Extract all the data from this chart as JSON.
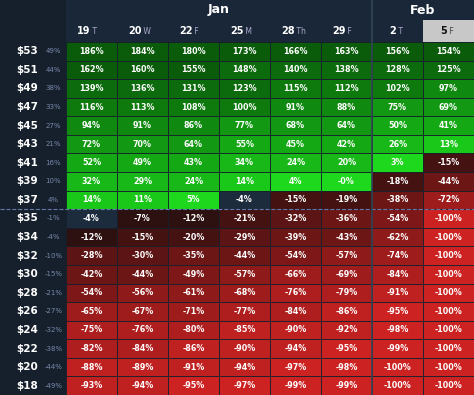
{
  "col_headers": [
    {
      "day": "19",
      "day_letter": "T"
    },
    {
      "day": "20",
      "day_letter": "W"
    },
    {
      "day": "22",
      "day_letter": "F"
    },
    {
      "day": "25",
      "day_letter": "M"
    },
    {
      "day": "28",
      "day_letter": "Th"
    },
    {
      "day": "29",
      "day_letter": "F"
    },
    {
      "day": "2",
      "day_letter": "T"
    },
    {
      "day": "5",
      "day_letter": "F"
    }
  ],
  "row_labels": [
    "$53",
    "$51",
    "$49",
    "$47",
    "$45",
    "$43",
    "$41",
    "$39",
    "$37",
    "$35",
    "$34",
    "$32",
    "$30",
    "$28",
    "$26",
    "$24",
    "$22",
    "$20",
    "$18"
  ],
  "row_pct": [
    "49%",
    "44%",
    "38%",
    "33%",
    "27%",
    "21%",
    "16%",
    "10%",
    "4%",
    "-1%",
    "-4%",
    "-10%",
    "-15%",
    "-21%",
    "-27%",
    "-32%",
    "-38%",
    "-44%",
    "-49%"
  ],
  "table_data": [
    [
      186,
      184,
      180,
      173,
      166,
      163,
      156,
      154
    ],
    [
      162,
      160,
      155,
      148,
      140,
      138,
      128,
      125
    ],
    [
      139,
      136,
      131,
      123,
      115,
      112,
      102,
      97
    ],
    [
      116,
      113,
      108,
      100,
      91,
      88,
      75,
      69
    ],
    [
      94,
      91,
      86,
      77,
      68,
      64,
      50,
      41
    ],
    [
      72,
      70,
      64,
      55,
      45,
      42,
      26,
      13
    ],
    [
      52,
      49,
      43,
      34,
      24,
      20,
      3,
      -15
    ],
    [
      32,
      29,
      24,
      14,
      4,
      0,
      -18,
      -44
    ],
    [
      14,
      11,
      5,
      -4,
      -15,
      -19,
      -38,
      -72
    ],
    [
      -4,
      -7,
      -12,
      -21,
      -32,
      -36,
      -54,
      -100
    ],
    [
      -12,
      -15,
      -20,
      -29,
      -39,
      -43,
      -62,
      -100
    ],
    [
      -28,
      -30,
      -35,
      -44,
      -54,
      -57,
      -74,
      -100
    ],
    [
      -42,
      -44,
      -49,
      -57,
      -66,
      -69,
      -84,
      -100
    ],
    [
      -54,
      -56,
      -61,
      -68,
      -76,
      -79,
      -91,
      -100
    ],
    [
      -65,
      -67,
      -71,
      -77,
      -84,
      -86,
      -95,
      -100
    ],
    [
      -75,
      -76,
      -80,
      -85,
      -90,
      -92,
      -98,
      -100
    ],
    [
      -82,
      -84,
      -86,
      -90,
      -94,
      -95,
      -99,
      -100
    ],
    [
      -88,
      -89,
      -91,
      -94,
      -97,
      -98,
      -100,
      -100
    ],
    [
      -93,
      -94,
      -95,
      -97,
      -99,
      -99,
      -100,
      -100
    ]
  ],
  "bg_color": "#16202c",
  "header_bg": "#1a2738",
  "jan_cols": 6,
  "feb_cols": 2,
  "highlighted_col": 7,
  "atm_after_row": 9,
  "month_labels": [
    "Jan",
    "Feb"
  ],
  "green_colors": [
    "#0d6b0d",
    "#0f780f",
    "#118511",
    "#139213",
    "#159f15",
    "#17ac17",
    "#19ba19",
    "#1bc71b",
    "#1dd41d"
  ],
  "dark_near_zero": "#1e2a3a",
  "red_colors": [
    "#3d0d0d",
    "#4d1010",
    "#5e1212",
    "#6e1515",
    "#7e1717",
    "#8e1a1a",
    "#9e1c1c",
    "#ae1f1f",
    "#be2222",
    "#cc2424"
  ]
}
